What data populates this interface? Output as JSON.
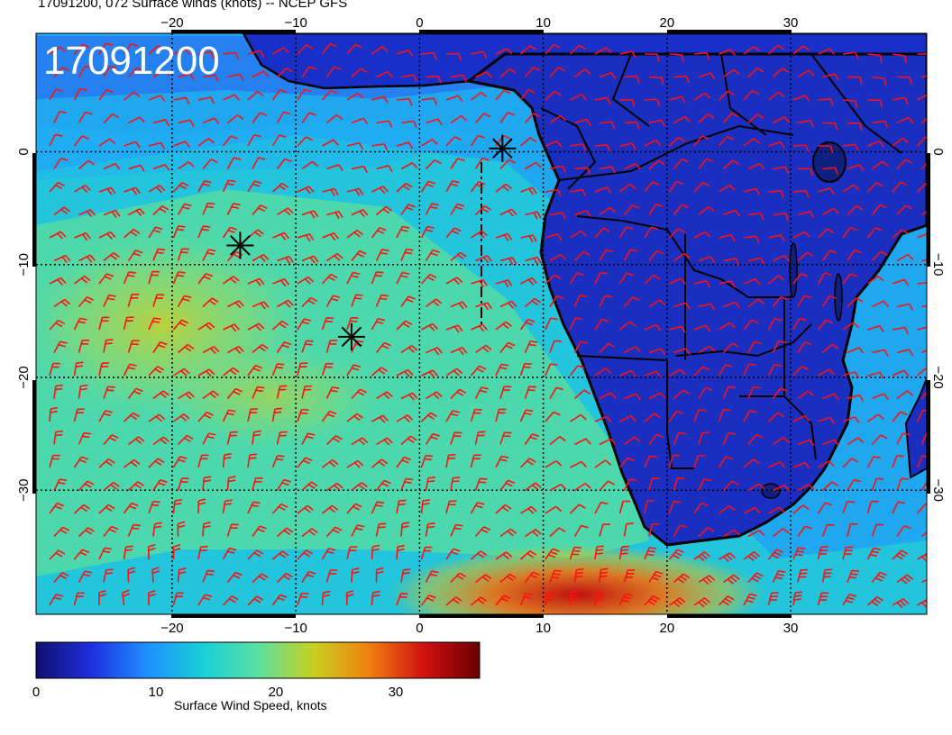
{
  "title": "17091200, 072 Surface winds (knots) -- NCEP GFS",
  "stamp": "17091200",
  "lon_ticks_top": [
    "−20",
    "−10",
    "0",
    "10",
    "20",
    "30"
  ],
  "lon_ticks_bottom": [
    "−20",
    "−10",
    "0",
    "10",
    "20",
    "30"
  ],
  "lat_ticks_left": [
    "0",
    "−10",
    "−20",
    "−30"
  ],
  "lat_ticks_right": [
    "0",
    "−10",
    "−20",
    "−30"
  ],
  "colorbar": {
    "label": "Surface Wind Speed, knots",
    "ticks": [
      "0",
      "10",
      "20",
      "30"
    ],
    "range": [
      0,
      37
    ],
    "colors": [
      "#10106e",
      "#1e2ee0",
      "#1f8fff",
      "#18d0d8",
      "#59e0a0",
      "#c8d020",
      "#f08010",
      "#d01010",
      "#6a0000"
    ]
  },
  "markers": [
    {
      "name": "asterisk-1",
      "lon": 6.7,
      "lat": 0.3
    },
    {
      "name": "asterisk-2",
      "lon": -14.5,
      "lat": -8.3
    },
    {
      "name": "asterisk-3",
      "lon": -5.5,
      "lat": -16.4
    }
  ],
  "map": {
    "lon_range": [
      -31,
      41
    ],
    "lat_range": [
      -41,
      10.5
    ],
    "grid_lons": [
      -20,
      -10,
      0,
      10,
      20,
      30
    ],
    "grid_lats": [
      0,
      -10,
      -20,
      -30
    ],
    "barb_color": "#ff1010"
  }
}
